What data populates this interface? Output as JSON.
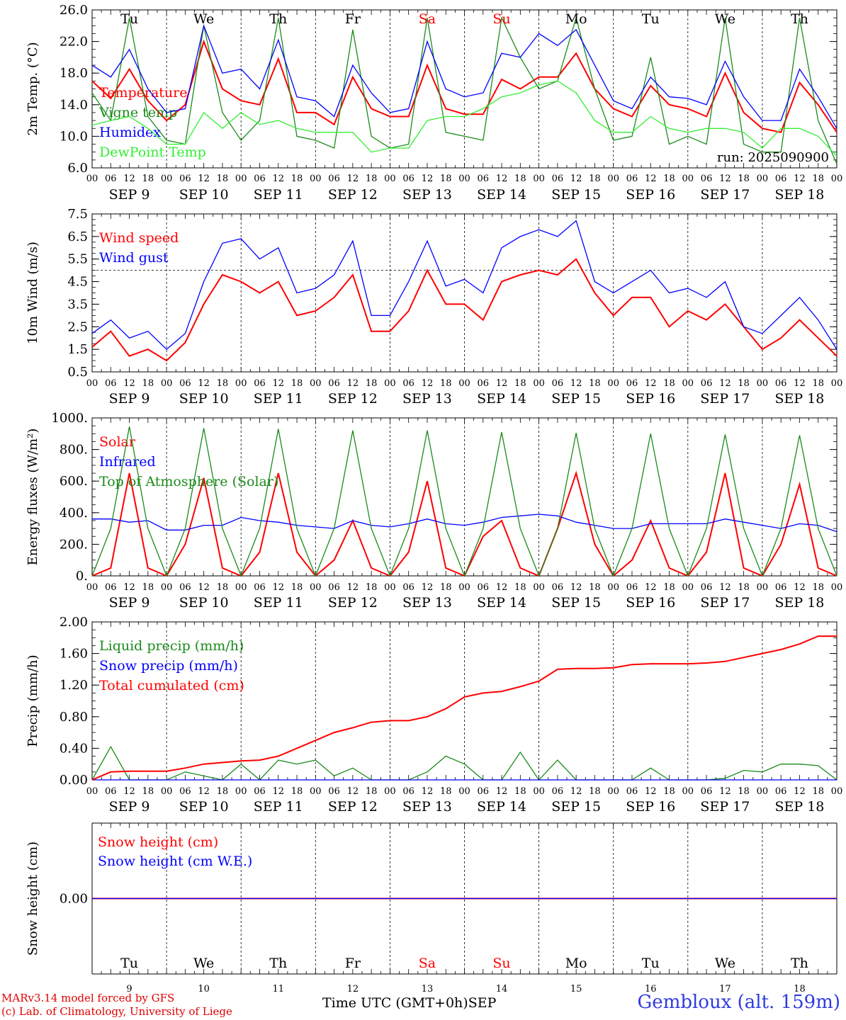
{
  "location": "Gembloux (alt. 159m)",
  "credits": {
    "model": "MARv3.14 model forced by GFS",
    "lab": "(c) Lab. of Climatology, University of Liege"
  },
  "x_axis": {
    "title": "Time UTC (GMT+0h)",
    "month": "SEP",
    "hour_ticks": [
      "00",
      "06",
      "12",
      "18"
    ],
    "date_labels": [
      "SEP  9",
      "SEP 10",
      "SEP 11",
      "SEP 12",
      "SEP 13",
      "SEP 14",
      "SEP 15",
      "SEP 16",
      "SEP 17",
      "SEP 18"
    ],
    "day_names": [
      "Tu",
      "We",
      "Th",
      "Fr",
      "Sa",
      "Su",
      "Mo",
      "Tu",
      "We",
      "Th"
    ],
    "weekend_indices": [
      4,
      5
    ],
    "day_numbers": [
      "9",
      "10",
      "11",
      "12",
      "13",
      "14",
      "15",
      "16",
      "17",
      "18"
    ]
  },
  "colors": {
    "red": "#ff0000",
    "green": "#1a8a1a",
    "blue": "#0000ff",
    "lightgreen": "#33ee33",
    "weekend": "#ff0000"
  },
  "chart_data": [
    {
      "type": "line",
      "ylabel": "2m Temp. (°C)",
      "ylim": [
        6,
        26
      ],
      "yticks": [
        6,
        10,
        14,
        18,
        22,
        26
      ],
      "ytick_labels": [
        "6.0",
        "10.0",
        "14.0",
        "18.0",
        "22.0",
        "26.0"
      ],
      "annotation": "run: 2025090900",
      "x_hours": [
        0,
        6,
        12,
        18,
        24,
        30,
        36,
        42,
        48,
        54,
        60,
        66,
        72,
        78,
        84,
        90,
        96,
        102,
        108,
        114,
        120,
        126,
        132,
        138,
        144,
        150,
        156,
        162,
        168,
        174,
        180,
        186,
        192,
        198,
        204,
        210,
        216,
        222,
        228,
        234,
        240
      ],
      "series": [
        {
          "name": "Temperature",
          "color": "red",
          "values": [
            17.0,
            14.8,
            18.5,
            14.5,
            12.0,
            14.0,
            22.0,
            16.0,
            14.5,
            14.0,
            19.8,
            13.0,
            13.0,
            11.5,
            17.5,
            13.5,
            12.5,
            12.5,
            19.0,
            13.5,
            12.8,
            12.8,
            17.2,
            16.0,
            17.5,
            17.5,
            20.5,
            16.0,
            13.5,
            12.5,
            16.4,
            14.0,
            13.5,
            12.5,
            18.0,
            13.0,
            11.0,
            10.5,
            16.8,
            14.0,
            10.5
          ]
        },
        {
          "name": "Vigne temp",
          "color": "green",
          "values": [
            15.5,
            12.0,
            25.0,
            12.5,
            9.5,
            9.0,
            24.0,
            13.0,
            9.5,
            12.0,
            25.0,
            10.0,
            9.5,
            8.5,
            23.5,
            10.0,
            8.5,
            9.0,
            25.0,
            10.5,
            10.0,
            9.5,
            25.0,
            20.0,
            16.0,
            17.0,
            25.0,
            16.0,
            9.5,
            10.0,
            20.0,
            9.0,
            10.0,
            9.0,
            25.0,
            9.0,
            8.0,
            8.0,
            25.0,
            12.0,
            6.5
          ]
        },
        {
          "name": "Humidex",
          "color": "blue",
          "values": [
            19.0,
            17.5,
            21.0,
            16.0,
            13.0,
            13.5,
            24.0,
            18.0,
            18.5,
            16.0,
            22.2,
            15.0,
            14.5,
            12.5,
            19.0,
            15.5,
            13.0,
            13.5,
            22.0,
            16.0,
            15.0,
            15.5,
            20.5,
            20.0,
            23.0,
            21.5,
            23.5,
            19.0,
            14.5,
            13.5,
            17.5,
            15.0,
            14.8,
            14.0,
            19.5,
            15.0,
            12.0,
            12.0,
            18.5,
            15.0,
            11.0
          ]
        },
        {
          "name": "DewPoint Temp",
          "color": "lightgreen",
          "values": [
            11.4,
            12.0,
            12.5,
            11.0,
            9.0,
            9.0,
            13.0,
            11.0,
            13.0,
            11.5,
            12.0,
            11.0,
            10.5,
            10.5,
            10.5,
            8.0,
            8.5,
            8.5,
            12.0,
            12.5,
            12.5,
            13.5,
            15.0,
            15.5,
            16.5,
            17.0,
            15.5,
            12.0,
            10.5,
            10.5,
            12.5,
            11.0,
            10.5,
            11.0,
            11.0,
            10.5,
            8.5,
            11.0,
            11.0,
            10.0,
            7.5
          ]
        }
      ]
    },
    {
      "type": "line",
      "ylabel": "10m Wind (m/s)",
      "ylim": [
        0.5,
        7.5
      ],
      "yticks": [
        0.5,
        1.5,
        2.5,
        3.5,
        4.5,
        5.5,
        6.5,
        7.5
      ],
      "ytick_labels": [
        "0.5",
        "1.5",
        "2.5",
        "3.5",
        "4.5",
        "5.5",
        "6.5",
        "7.5"
      ],
      "reference_line": 5.0,
      "x_hours": [
        0,
        6,
        12,
        18,
        24,
        30,
        36,
        42,
        48,
        54,
        60,
        66,
        72,
        78,
        84,
        90,
        96,
        102,
        108,
        114,
        120,
        126,
        132,
        138,
        144,
        150,
        156,
        162,
        168,
        174,
        180,
        186,
        192,
        198,
        204,
        210,
        216,
        222,
        228,
        234,
        240
      ],
      "series": [
        {
          "name": "Wind speed",
          "color": "red",
          "values": [
            1.6,
            2.3,
            1.2,
            1.5,
            1.0,
            1.8,
            3.5,
            4.8,
            4.5,
            4.0,
            4.5,
            3.0,
            3.2,
            3.8,
            4.8,
            2.3,
            2.3,
            3.2,
            5.0,
            3.5,
            3.5,
            2.8,
            4.5,
            4.8,
            5.0,
            4.8,
            5.5,
            4.0,
            3.0,
            3.8,
            3.8,
            2.5,
            3.2,
            2.8,
            3.5,
            2.5,
            1.5,
            2.0,
            2.8,
            2.0,
            1.2
          ]
        },
        {
          "name": "Wind gust",
          "color": "blue",
          "values": [
            2.2,
            2.8,
            2.0,
            2.3,
            1.5,
            2.2,
            4.5,
            6.2,
            6.4,
            5.5,
            6.0,
            4.0,
            4.2,
            4.8,
            6.3,
            3.0,
            3.0,
            4.5,
            6.3,
            4.3,
            4.6,
            4.0,
            6.0,
            6.5,
            6.8,
            6.5,
            7.2,
            4.5,
            4.0,
            4.5,
            5.0,
            4.0,
            4.2,
            3.8,
            4.5,
            2.5,
            2.2,
            3.0,
            3.8,
            2.8,
            1.5
          ]
        }
      ]
    },
    {
      "type": "line",
      "ylabel": "Energy fluxes (W/m²)",
      "ylim": [
        0,
        1000
      ],
      "yticks": [
        0,
        200,
        400,
        600,
        800,
        1000
      ],
      "ytick_labels": [
        "0.",
        "200.",
        "400.",
        "600.",
        "800.",
        "1000."
      ],
      "x_hours": [
        0,
        6,
        12,
        18,
        24,
        30,
        36,
        42,
        48,
        54,
        60,
        66,
        72,
        78,
        84,
        90,
        96,
        102,
        108,
        114,
        120,
        126,
        132,
        138,
        144,
        150,
        156,
        162,
        168,
        174,
        180,
        186,
        192,
        198,
        204,
        210,
        216,
        222,
        228,
        234,
        240
      ],
      "series": [
        {
          "name": "Solar",
          "color": "red",
          "values": [
            0,
            50,
            650,
            50,
            0,
            200,
            620,
            50,
            0,
            150,
            650,
            150,
            0,
            100,
            350,
            50,
            0,
            150,
            600,
            50,
            0,
            250,
            350,
            50,
            0,
            300,
            650,
            200,
            0,
            100,
            350,
            50,
            0,
            150,
            650,
            50,
            0,
            200,
            580,
            50,
            0
          ]
        },
        {
          "name": "Infrared",
          "color": "blue",
          "values": [
            360,
            360,
            340,
            350,
            290,
            290,
            320,
            320,
            370,
            350,
            340,
            320,
            310,
            300,
            350,
            320,
            310,
            330,
            360,
            330,
            320,
            340,
            370,
            380,
            390,
            380,
            340,
            320,
            300,
            300,
            330,
            330,
            330,
            330,
            360,
            340,
            320,
            300,
            330,
            320,
            280
          ]
        },
        {
          "name": "Top of Atmosphere (Solar)",
          "color": "green",
          "values": [
            0,
            300,
            945,
            300,
            0,
            300,
            935,
            300,
            0,
            300,
            930,
            300,
            0,
            300,
            920,
            300,
            0,
            300,
            920,
            300,
            0,
            300,
            910,
            300,
            0,
            300,
            905,
            300,
            0,
            300,
            900,
            300,
            0,
            300,
            895,
            300,
            0,
            300,
            890,
            300,
            0
          ]
        }
      ]
    },
    {
      "type": "line",
      "ylabel": "Precip (mm/h)",
      "ylim": [
        0,
        2
      ],
      "yticks": [
        0,
        0.4,
        0.8,
        1.2,
        1.6,
        2.0
      ],
      "ytick_labels": [
        "0.00",
        "0.40",
        "0.80",
        "1.20",
        "1.60",
        "2.00"
      ],
      "x_hours": [
        0,
        6,
        12,
        18,
        24,
        30,
        36,
        42,
        48,
        54,
        60,
        66,
        72,
        78,
        84,
        90,
        96,
        102,
        108,
        114,
        120,
        126,
        132,
        138,
        144,
        150,
        156,
        162,
        168,
        174,
        180,
        186,
        192,
        198,
        204,
        210,
        216,
        222,
        228,
        234,
        240
      ],
      "series": [
        {
          "name": "Liquid precip (mm/h)",
          "color": "green",
          "values": [
            0,
            0.42,
            0,
            0,
            0,
            0.1,
            0.05,
            0,
            0.2,
            0,
            0.25,
            0.2,
            0.25,
            0.05,
            0.15,
            0,
            0,
            0,
            0.1,
            0.3,
            0.2,
            0,
            0,
            0.35,
            0,
            0.25,
            0,
            0,
            0,
            0,
            0.15,
            0,
            0,
            0,
            0.02,
            0.12,
            0.1,
            0.2,
            0.2,
            0.18,
            0
          ]
        },
        {
          "name": "Snow precip (mm/h)",
          "color": "blue",
          "values": [
            0,
            0,
            0,
            0,
            0,
            0,
            0,
            0,
            0,
            0,
            0,
            0,
            0,
            0,
            0,
            0,
            0,
            0,
            0,
            0,
            0,
            0,
            0,
            0,
            0,
            0,
            0,
            0,
            0,
            0,
            0,
            0,
            0,
            0,
            0,
            0,
            0,
            0,
            0,
            0,
            0
          ]
        },
        {
          "name": "Total cumulated (cm)",
          "color": "red",
          "values": [
            0,
            0.1,
            0.11,
            0.11,
            0.11,
            0.15,
            0.2,
            0.22,
            0.24,
            0.25,
            0.3,
            0.4,
            0.5,
            0.6,
            0.66,
            0.73,
            0.75,
            0.75,
            0.8,
            0.9,
            1.05,
            1.1,
            1.12,
            1.18,
            1.25,
            1.4,
            1.41,
            1.41,
            1.42,
            1.46,
            1.47,
            1.47,
            1.47,
            1.48,
            1.5,
            1.55,
            1.6,
            1.65,
            1.72,
            1.82,
            1.82
          ]
        }
      ]
    },
    {
      "type": "line",
      "ylabel": "Snow height (cm)",
      "ylim": [
        -1,
        1
      ],
      "yticks": [
        0
      ],
      "ytick_labels": [
        "0.00"
      ],
      "x_hours": [
        0,
        240
      ],
      "series": [
        {
          "name": "Snow height (cm)",
          "color": "red",
          "values": [
            0,
            0
          ]
        },
        {
          "name": "Snow height (cm W.E.)",
          "color": "blue",
          "values": [
            0,
            0
          ]
        }
      ]
    }
  ]
}
